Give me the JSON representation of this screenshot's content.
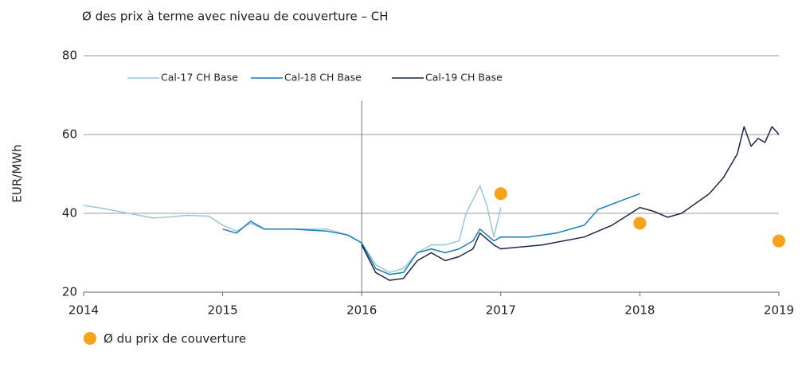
{
  "chart_data": {
    "type": "line",
    "title": "Ø des prix à terme avec niveau de couverture – CH",
    "ylabel": "EUR/MWh",
    "xlim": [
      2014,
      2019
    ],
    "xticks": [
      2014,
      2015,
      2016,
      2017,
      2018,
      2019
    ],
    "ylim": [
      20,
      80
    ],
    "yticks": [
      20,
      40,
      60,
      80
    ],
    "grid": true,
    "legend": "top",
    "reference_line": {
      "x": 2016,
      "ymax": 68.5
    },
    "series": [
      {
        "name": "Cal-17 CH Base",
        "color": "#9cc5da",
        "x": [
          2014.0,
          2014.1,
          2014.25,
          2014.4,
          2014.5,
          2014.65,
          2014.75,
          2014.9,
          2015.0,
          2015.1,
          2015.2,
          2015.3,
          2015.5,
          2015.75,
          2015.9,
          2016.0,
          2016.1,
          2016.2,
          2016.3,
          2016.4,
          2016.5,
          2016.6,
          2016.7,
          2016.75,
          2016.85,
          2016.9,
          2016.95,
          2017.0
        ],
        "values": [
          42,
          41.5,
          40.5,
          39.5,
          38.8,
          39.2,
          39.5,
          39.3,
          37,
          35.5,
          37.5,
          36,
          36,
          36,
          34.5,
          32.5,
          27,
          25,
          26,
          30,
          32,
          32,
          33,
          40,
          47,
          42,
          34,
          41.5
        ]
      },
      {
        "name": "Cal-18 CH Base",
        "color": "#1b7cb3",
        "x": [
          2015.0,
          2015.1,
          2015.2,
          2015.3,
          2015.5,
          2015.75,
          2015.9,
          2016.0,
          2016.1,
          2016.2,
          2016.3,
          2016.4,
          2016.5,
          2016.6,
          2016.7,
          2016.8,
          2016.85,
          2016.95,
          2017.0,
          2017.2,
          2017.4,
          2017.6,
          2017.7,
          2017.85,
          2018.0
        ],
        "values": [
          36,
          35,
          38,
          36,
          36,
          35.5,
          34.5,
          32.5,
          26,
          24.5,
          25,
          30,
          31,
          30,
          31,
          33,
          36,
          33,
          34,
          34,
          35,
          37,
          41,
          43,
          45
        ]
      },
      {
        "name": "Cal-19 CH Base",
        "color": "#1a2747",
        "x": [
          2016.0,
          2016.1,
          2016.2,
          2016.3,
          2016.4,
          2016.5,
          2016.6,
          2016.7,
          2016.8,
          2016.85,
          2016.95,
          2017.0,
          2017.3,
          2017.6,
          2017.8,
          2018.0,
          2018.1,
          2018.2,
          2018.3,
          2018.5,
          2018.6,
          2018.7,
          2018.75,
          2018.8,
          2018.85,
          2018.9,
          2018.95,
          2019.0
        ],
        "values": [
          32,
          25,
          23,
          23.5,
          28,
          30,
          28,
          29,
          31,
          35,
          32,
          31,
          32,
          34,
          37,
          41.5,
          40.5,
          39,
          40,
          45,
          49,
          55,
          62,
          57,
          59,
          58,
          62,
          60
        ]
      }
    ],
    "hedge": {
      "name": "Ø du prix de couverture",
      "color": "#f7a21b",
      "x": [
        2017,
        2018,
        2019
      ],
      "values": [
        45,
        37.5,
        33
      ]
    }
  }
}
